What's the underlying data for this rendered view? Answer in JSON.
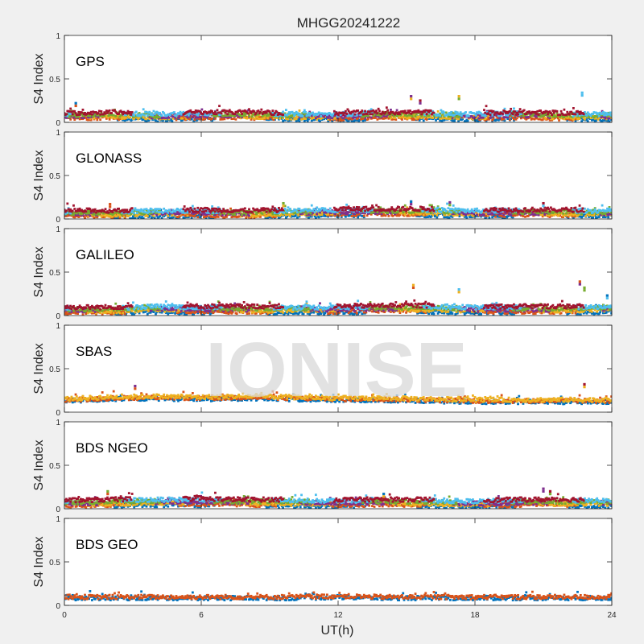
{
  "figure": {
    "title": "MHGG20241222",
    "watermark": "IONISE",
    "background": "#f0f0f0"
  },
  "chart_data": {
    "type": "scatter",
    "title": "MHGG20241222",
    "xlabel": "UT(h)",
    "ylabel": "S4 Index",
    "xlim": [
      0,
      24
    ],
    "ylim": [
      0,
      1
    ],
    "xticks": [
      0,
      6,
      12,
      18,
      24
    ],
    "yticks": [
      0,
      0.5,
      1
    ],
    "ytick_labels": [
      "0",
      "0.5",
      "1"
    ],
    "grid": false,
    "legend": "none",
    "colors": [
      "#0072bd",
      "#d95319",
      "#edb120",
      "#7e2f8e",
      "#77ac30",
      "#4dbeee",
      "#a2142f"
    ],
    "panels": [
      {
        "label": "GPS",
        "series_count": 7,
        "baseline": {
          "x": [
            0,
            2,
            4,
            6,
            8,
            10,
            12,
            14,
            16,
            18,
            20,
            22,
            24
          ],
          "y": [
            0.07,
            0.08,
            0.07,
            0.08,
            0.08,
            0.07,
            0.07,
            0.08,
            0.08,
            0.07,
            0.08,
            0.07,
            0.07
          ]
        },
        "spikes": {
          "x": [
            0.5,
            15.2,
            15.6,
            17.3,
            22.7
          ],
          "y": [
            0.22,
            0.3,
            0.25,
            0.3,
            0.34
          ]
        }
      },
      {
        "label": "GLONASS",
        "series_count": 7,
        "baseline": {
          "x": [
            0,
            2,
            4,
            6,
            8,
            10,
            12,
            14,
            16,
            18,
            20,
            22,
            24
          ],
          "y": [
            0.06,
            0.06,
            0.07,
            0.07,
            0.06,
            0.07,
            0.08,
            0.08,
            0.08,
            0.07,
            0.07,
            0.07,
            0.07
          ]
        },
        "spikes": {
          "x": [
            2.0,
            9.6,
            15.2,
            16.9,
            21.0
          ],
          "y": [
            0.17,
            0.18,
            0.2,
            0.19,
            0.18
          ]
        }
      },
      {
        "label": "GALILEO",
        "series_count": 7,
        "baseline": {
          "x": [
            0,
            2,
            4,
            6,
            8,
            10,
            12,
            14,
            16,
            18,
            20,
            22,
            24
          ],
          "y": [
            0.06,
            0.06,
            0.08,
            0.07,
            0.07,
            0.07,
            0.07,
            0.08,
            0.08,
            0.07,
            0.07,
            0.07,
            0.08
          ]
        },
        "spikes": {
          "x": [
            15.3,
            17.3,
            22.6,
            22.8,
            23.8
          ],
          "y": [
            0.35,
            0.3,
            0.39,
            0.32,
            0.23
          ]
        }
      },
      {
        "label": "SBAS",
        "series_count": 3,
        "baseline": {
          "x": [
            0,
            2,
            4,
            6,
            8,
            10,
            12,
            14,
            16,
            18,
            20,
            22,
            24
          ],
          "y": [
            0.14,
            0.16,
            0.17,
            0.16,
            0.17,
            0.16,
            0.15,
            0.15,
            0.14,
            0.13,
            0.13,
            0.13,
            0.13
          ]
        },
        "spikes": {
          "x": [
            3.1,
            22.8
          ],
          "y": [
            0.3,
            0.32
          ]
        }
      },
      {
        "label": "BDS NGEO",
        "series_count": 7,
        "baseline": {
          "x": [
            0,
            2,
            4,
            6,
            8,
            10,
            12,
            14,
            16,
            18,
            20,
            22,
            24
          ],
          "y": [
            0.06,
            0.07,
            0.08,
            0.08,
            0.07,
            0.07,
            0.07,
            0.07,
            0.07,
            0.06,
            0.07,
            0.07,
            0.07
          ]
        },
        "spikes": {
          "x": [
            1.9,
            14.0,
            21.0,
            21.3
          ],
          "y": [
            0.2,
            0.17,
            0.23,
            0.2
          ]
        }
      },
      {
        "label": "BDS GEO",
        "series_count": 2,
        "baseline": {
          "x": [
            0,
            2,
            4,
            6,
            8,
            10,
            12,
            14,
            16,
            18,
            20,
            22,
            24
          ],
          "y": [
            0.09,
            0.09,
            0.09,
            0.09,
            0.09,
            0.09,
            0.1,
            0.09,
            0.09,
            0.09,
            0.09,
            0.09,
            0.09
          ]
        },
        "spikes": {
          "x": [],
          "y": []
        }
      }
    ]
  }
}
